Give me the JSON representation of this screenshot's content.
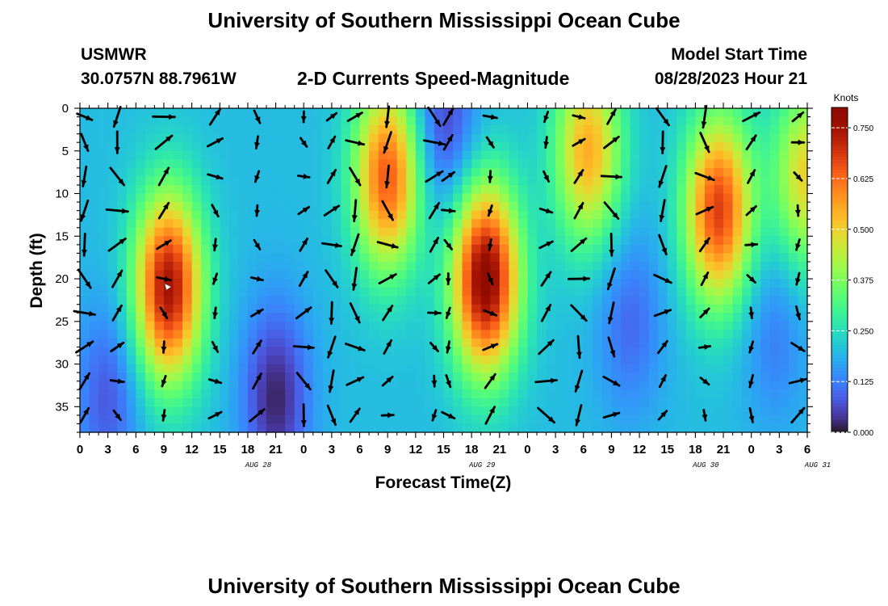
{
  "page": {
    "title_top": "University of Southern Mississippi Ocean Cube",
    "title_bottom": "University of Southern Mississippi Ocean Cube"
  },
  "header": {
    "station": "USMWR",
    "coords": "30.0757N  88.7961W",
    "variable": "2-D Currents Speed-Magnitude",
    "model_start_label": "Model Start Time",
    "model_start_value": "08/28/2023 Hour 21"
  },
  "chart_data": {
    "type": "heatmap",
    "title": "2-D Currents Speed-Magnitude",
    "xlabel": "Forecast Time(Z)",
    "ylabel": "Depth (ft)",
    "x_tick_labels": [
      "0",
      "3",
      "6",
      "9",
      "12",
      "15",
      "18",
      "21",
      "0",
      "3",
      "6",
      "9",
      "12",
      "15",
      "18",
      "21",
      "0",
      "3",
      "6",
      "9",
      "12",
      "15",
      "18",
      "21",
      "0",
      "3",
      "6"
    ],
    "date_labels": [
      {
        "label": "AUG 28",
        "tick_index": 6
      },
      {
        "label": "AUG 29",
        "tick_index": 14
      },
      {
        "label": "AUG 30",
        "tick_index": 22
      },
      {
        "label": "AUG 31",
        "tick_index": 26
      }
    ],
    "x_range_hours": [
      0,
      78
    ],
    "y_ticks": [
      "0",
      "5",
      "10",
      "15",
      "20",
      "25",
      "30",
      "35"
    ],
    "ylim_ft": [
      0,
      38
    ],
    "y_inverted": true,
    "colorbar": {
      "unit_label": "Knots",
      "range": [
        0.0,
        0.8
      ],
      "tick_labels": [
        "0.750",
        "0.625",
        "0.500",
        "0.375",
        "0.250",
        "0.125",
        "0.000"
      ],
      "colormap": "turbo"
    },
    "speed_features_knots": [
      {
        "hour": 9.5,
        "depth_ft": 21,
        "speed": 0.75
      },
      {
        "hour": 33,
        "depth_ft": 8,
        "speed": 0.65
      },
      {
        "hour": 43.5,
        "depth_ft": 20,
        "speed": 0.8
      },
      {
        "hour": 54.5,
        "depth_ft": 5,
        "speed": 0.55
      },
      {
        "hour": 68.5,
        "depth_ft": 12,
        "speed": 0.68
      },
      {
        "hour": 78,
        "depth_ft": 8,
        "speed": 0.5
      },
      {
        "hour": 21,
        "depth_ft": 34,
        "speed": 0.02
      },
      {
        "hour": 39,
        "depth_ft": 2,
        "speed": 0.05
      },
      {
        "hour": 59,
        "depth_ft": 25,
        "speed": 0.1
      },
      {
        "hour": 3,
        "depth_ft": 34,
        "speed": 0.08
      },
      {
        "hour": 74.5,
        "depth_ft": 26,
        "speed": 0.12
      }
    ],
    "vector_columns_hours": [
      0.5,
      4,
      9,
      14.5,
      19,
      24,
      27,
      29.5,
      33,
      38,
      39.5,
      44,
      50,
      53.5,
      57,
      62.5,
      67,
      72,
      77
    ],
    "vector_depths_ft": [
      1,
      4,
      8,
      12,
      16,
      20,
      24,
      28,
      32,
      36
    ],
    "grid": false
  }
}
